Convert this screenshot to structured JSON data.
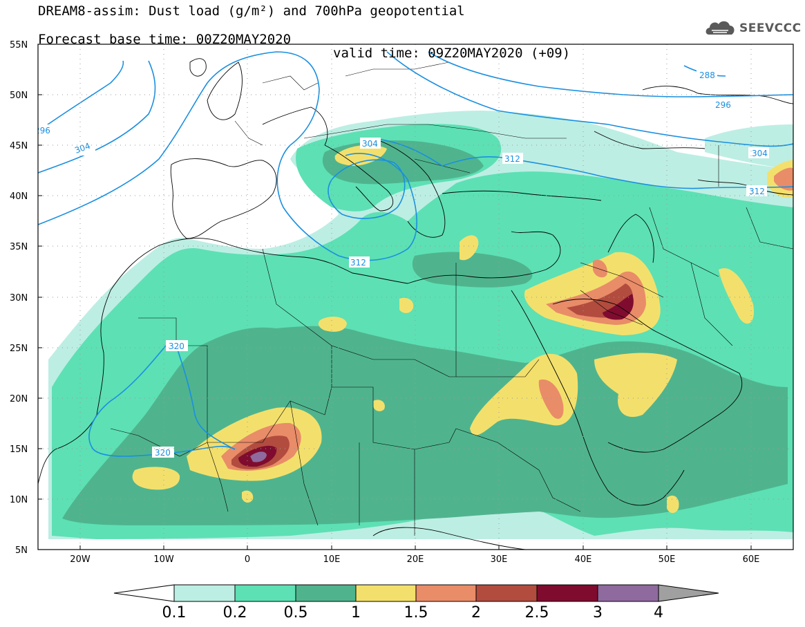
{
  "title": {
    "line1": "DREAM8-assim: Dust load (g/m²) and 700hPa geopotential",
    "line2_left": "Forecast base time: 00Z20MAY2020",
    "line2_right": "valid time: 09Z20MAY2020 (+09)"
  },
  "logo": {
    "text": "SEEVCCC",
    "icon": "cloud-icon",
    "color": "#5a5a5a"
  },
  "map": {
    "lon_range": [
      -25,
      65
    ],
    "lat_range": [
      5,
      55
    ],
    "lat_ticks": [
      "55N",
      "50N",
      "45N",
      "40N",
      "35N",
      "30N",
      "25N",
      "20N",
      "15N",
      "10N",
      "5N"
    ],
    "lon_ticks": [
      "20W",
      "10W",
      "0",
      "10E",
      "20E",
      "30E",
      "40E",
      "50E",
      "60E"
    ],
    "contour_labels": [
      "296",
      "304",
      "288",
      "296",
      "304",
      "312",
      "312",
      "312",
      "320",
      "320",
      "304"
    ],
    "contour_color": "#1a8fe0"
  },
  "colorbar": {
    "levels": [
      "0.1",
      "0.2",
      "0.5",
      "1",
      "1.5",
      "2",
      "2.5",
      "3",
      "4"
    ],
    "colors": [
      "#ffffff",
      "#bdeee3",
      "#5de0b4",
      "#4fb48e",
      "#f3e06c",
      "#e98c68",
      "#b24c3e",
      "#7f0c2e",
      "#8e6a9e",
      "#a0a0a0"
    ]
  }
}
